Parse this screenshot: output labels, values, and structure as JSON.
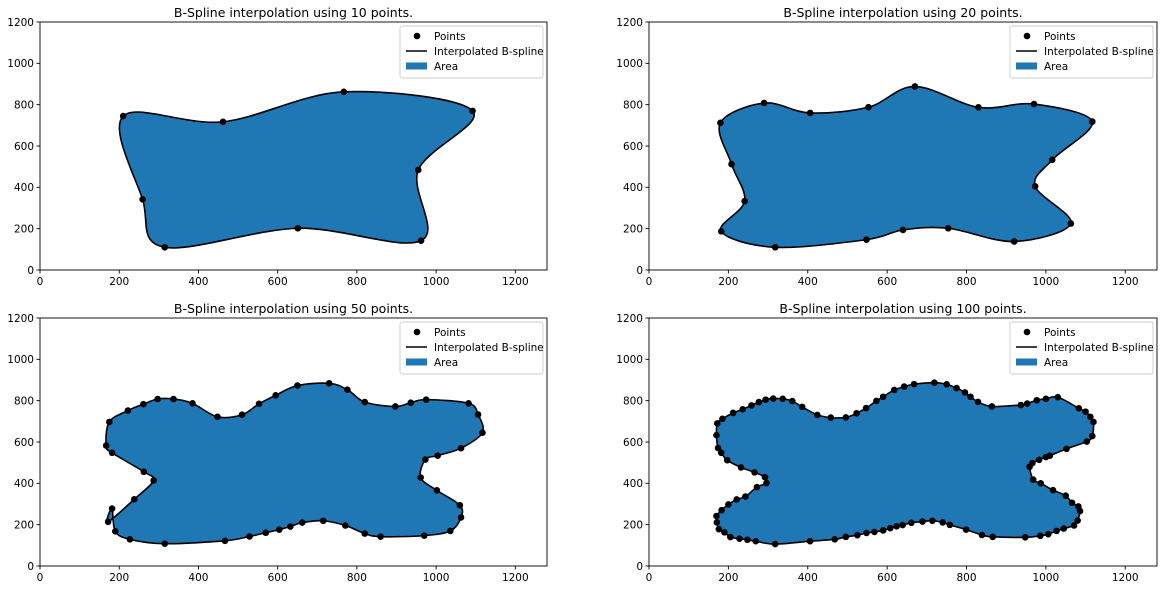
{
  "chart_data": [
    {
      "type": "scatter",
      "title": "B-Spline interpolation using 10 points.",
      "xlim": [
        0,
        1280
      ],
      "ylim": [
        0,
        1200
      ],
      "xticks": [
        0,
        200,
        400,
        600,
        800,
        1000,
        1200
      ],
      "yticks": [
        0,
        200,
        400,
        600,
        800,
        1000,
        1200
      ],
      "legend": {
        "position": "top-right",
        "entries": [
          "Points",
          "Interpolated B-spline",
          "Area"
        ]
      },
      "colors": {
        "points": "#000000",
        "spline": "#000000",
        "area": "#1f77b4"
      },
      "points": [
        [
          210,
          745
        ],
        [
          462,
          717
        ],
        [
          767,
          862
        ],
        [
          1092,
          770
        ],
        [
          955,
          484
        ],
        [
          962,
          142
        ],
        [
          651,
          202
        ],
        [
          315,
          110
        ],
        [
          259,
          342
        ]
      ]
    },
    {
      "type": "scatter",
      "title": "B-Spline interpolation using 20 points.",
      "xlim": [
        0,
        1280
      ],
      "ylim": [
        0,
        1200
      ],
      "xticks": [
        0,
        200,
        400,
        600,
        800,
        1000,
        1200
      ],
      "yticks": [
        0,
        200,
        400,
        600,
        800,
        1000,
        1200
      ],
      "legend": {
        "position": "top-right",
        "entries": [
          "Points",
          "Interpolated B-spline",
          "Area"
        ]
      },
      "colors": {
        "points": "#000000",
        "spline": "#000000",
        "area": "#1f77b4"
      },
      "points": [
        [
          180,
          712
        ],
        [
          290,
          808
        ],
        [
          406,
          760
        ],
        [
          553,
          788
        ],
        [
          670,
          888
        ],
        [
          830,
          787
        ],
        [
          970,
          803
        ],
        [
          1117,
          718
        ],
        [
          1016,
          533
        ],
        [
          973,
          405
        ],
        [
          1063,
          225
        ],
        [
          920,
          138
        ],
        [
          754,
          202
        ],
        [
          640,
          194
        ],
        [
          548,
          147
        ],
        [
          318,
          110
        ],
        [
          182,
          187
        ],
        [
          241,
          333
        ],
        [
          208,
          512
        ]
      ]
    },
    {
      "type": "scatter",
      "title": "B-Spline interpolation using 50 points.",
      "xlim": [
        0,
        1280
      ],
      "ylim": [
        0,
        1200
      ],
      "xticks": [
        0,
        200,
        400,
        600,
        800,
        1000,
        1200
      ],
      "yticks": [
        0,
        200,
        400,
        600,
        800,
        1000,
        1200
      ],
      "legend": {
        "position": "top-right",
        "entries": [
          "Points",
          "Interpolated B-spline",
          "Area"
        ]
      },
      "colors": {
        "points": "#000000",
        "spline": "#000000",
        "area": "#1f77b4"
      },
      "points": [
        [
          175,
          697
        ],
        [
          222,
          752
        ],
        [
          261,
          783
        ],
        [
          297,
          808
        ],
        [
          337,
          808
        ],
        [
          385,
          787
        ],
        [
          448,
          722
        ],
        [
          510,
          732
        ],
        [
          553,
          785
        ],
        [
          595,
          826
        ],
        [
          650,
          873
        ],
        [
          730,
          884
        ],
        [
          776,
          853
        ],
        [
          820,
          793
        ],
        [
          897,
          772
        ],
        [
          936,
          790
        ],
        [
          975,
          805
        ],
        [
          1082,
          787
        ],
        [
          1106,
          733
        ],
        [
          1117,
          645
        ],
        [
          1063,
          570
        ],
        [
          1004,
          534
        ],
        [
          973,
          515
        ],
        [
          961,
          428
        ],
        [
          1002,
          366
        ],
        [
          1060,
          294
        ],
        [
          1063,
          235
        ],
        [
          1036,
          170
        ],
        [
          970,
          147
        ],
        [
          860,
          142
        ],
        [
          820,
          157
        ],
        [
          771,
          196
        ],
        [
          715,
          219
        ],
        [
          662,
          210
        ],
        [
          632,
          191
        ],
        [
          604,
          176
        ],
        [
          570,
          161
        ],
        [
          529,
          143
        ],
        [
          467,
          122
        ],
        [
          315,
          108
        ],
        [
          227,
          129
        ],
        [
          190,
          168
        ],
        [
          182,
          278
        ],
        [
          172,
          214
        ],
        [
          238,
          323
        ],
        [
          287,
          414
        ],
        [
          262,
          456
        ],
        [
          182,
          548
        ],
        [
          167,
          583
        ]
      ]
    },
    {
      "type": "scatter",
      "title": "B-Spline interpolation using 100 points.",
      "xlim": [
        0,
        1280
      ],
      "ylim": [
        0,
        1200
      ],
      "xticks": [
        0,
        200,
        400,
        600,
        800,
        1000,
        1200
      ],
      "yticks": [
        0,
        200,
        400,
        600,
        800,
        1000,
        1200
      ],
      "legend": {
        "position": "top-right",
        "entries": [
          "Points",
          "Interpolated B-spline",
          "Area"
        ]
      },
      "colors": {
        "points": "#000000",
        "spline": "#000000",
        "area": "#1f77b4"
      },
      "points": [
        [
          170,
          633
        ],
        [
          172,
          690
        ],
        [
          185,
          712
        ],
        [
          212,
          741
        ],
        [
          236,
          758
        ],
        [
          258,
          777
        ],
        [
          277,
          793
        ],
        [
          294,
          805
        ],
        [
          313,
          810
        ],
        [
          337,
          809
        ],
        [
          361,
          798
        ],
        [
          386,
          770
        ],
        [
          424,
          731
        ],
        [
          458,
          718
        ],
        [
          496,
          719
        ],
        [
          523,
          739
        ],
        [
          547,
          764
        ],
        [
          573,
          799
        ],
        [
          590,
          819
        ],
        [
          618,
          852
        ],
        [
          643,
          868
        ],
        [
          668,
          880
        ],
        [
          719,
          887
        ],
        [
          750,
          879
        ],
        [
          775,
          861
        ],
        [
          796,
          840
        ],
        [
          810,
          819
        ],
        [
          829,
          794
        ],
        [
          864,
          772
        ],
        [
          937,
          779
        ],
        [
          953,
          786
        ],
        [
          977,
          802
        ],
        [
          1000,
          809
        ],
        [
          1030,
          817
        ],
        [
          1083,
          763
        ],
        [
          1100,
          747
        ],
        [
          1112,
          722
        ],
        [
          1120,
          697
        ],
        [
          1117,
          629
        ],
        [
          1103,
          602
        ],
        [
          1052,
          567
        ],
        [
          1010,
          534
        ],
        [
          1000,
          527
        ],
        [
          983,
          514
        ],
        [
          966,
          498
        ],
        [
          959,
          480
        ],
        [
          968,
          418
        ],
        [
          987,
          400
        ],
        [
          1018,
          367
        ],
        [
          1050,
          340
        ],
        [
          1066,
          306
        ],
        [
          1082,
          288
        ],
        [
          1086,
          266
        ],
        [
          1080,
          220
        ],
        [
          1071,
          196
        ],
        [
          1045,
          181
        ],
        [
          1027,
          170
        ],
        [
          1006,
          154
        ],
        [
          986,
          146
        ],
        [
          948,
          139
        ],
        [
          866,
          141
        ],
        [
          839,
          150
        ],
        [
          799,
          176
        ],
        [
          758,
          199
        ],
        [
          740,
          211
        ],
        [
          714,
          219
        ],
        [
          689,
          215
        ],
        [
          661,
          209
        ],
        [
          639,
          198
        ],
        [
          624,
          192
        ],
        [
          608,
          183
        ],
        [
          590,
          172
        ],
        [
          568,
          165
        ],
        [
          548,
          160
        ],
        [
          525,
          149
        ],
        [
          496,
          141
        ],
        [
          468,
          129
        ],
        [
          406,
          120
        ],
        [
          318,
          106
        ],
        [
          269,
          120
        ],
        [
          248,
          127
        ],
        [
          228,
          132
        ],
        [
          205,
          140
        ],
        [
          190,
          163
        ],
        [
          176,
          178
        ],
        [
          171,
          211
        ],
        [
          170,
          242
        ],
        [
          183,
          270
        ],
        [
          200,
          298
        ],
        [
          221,
          322
        ],
        [
          243,
          336
        ],
        [
          272,
          382
        ],
        [
          296,
          401
        ],
        [
          292,
          430
        ],
        [
          266,
          453
        ],
        [
          232,
          477
        ],
        [
          197,
          512
        ],
        [
          182,
          548
        ],
        [
          174,
          571
        ]
      ]
    }
  ]
}
